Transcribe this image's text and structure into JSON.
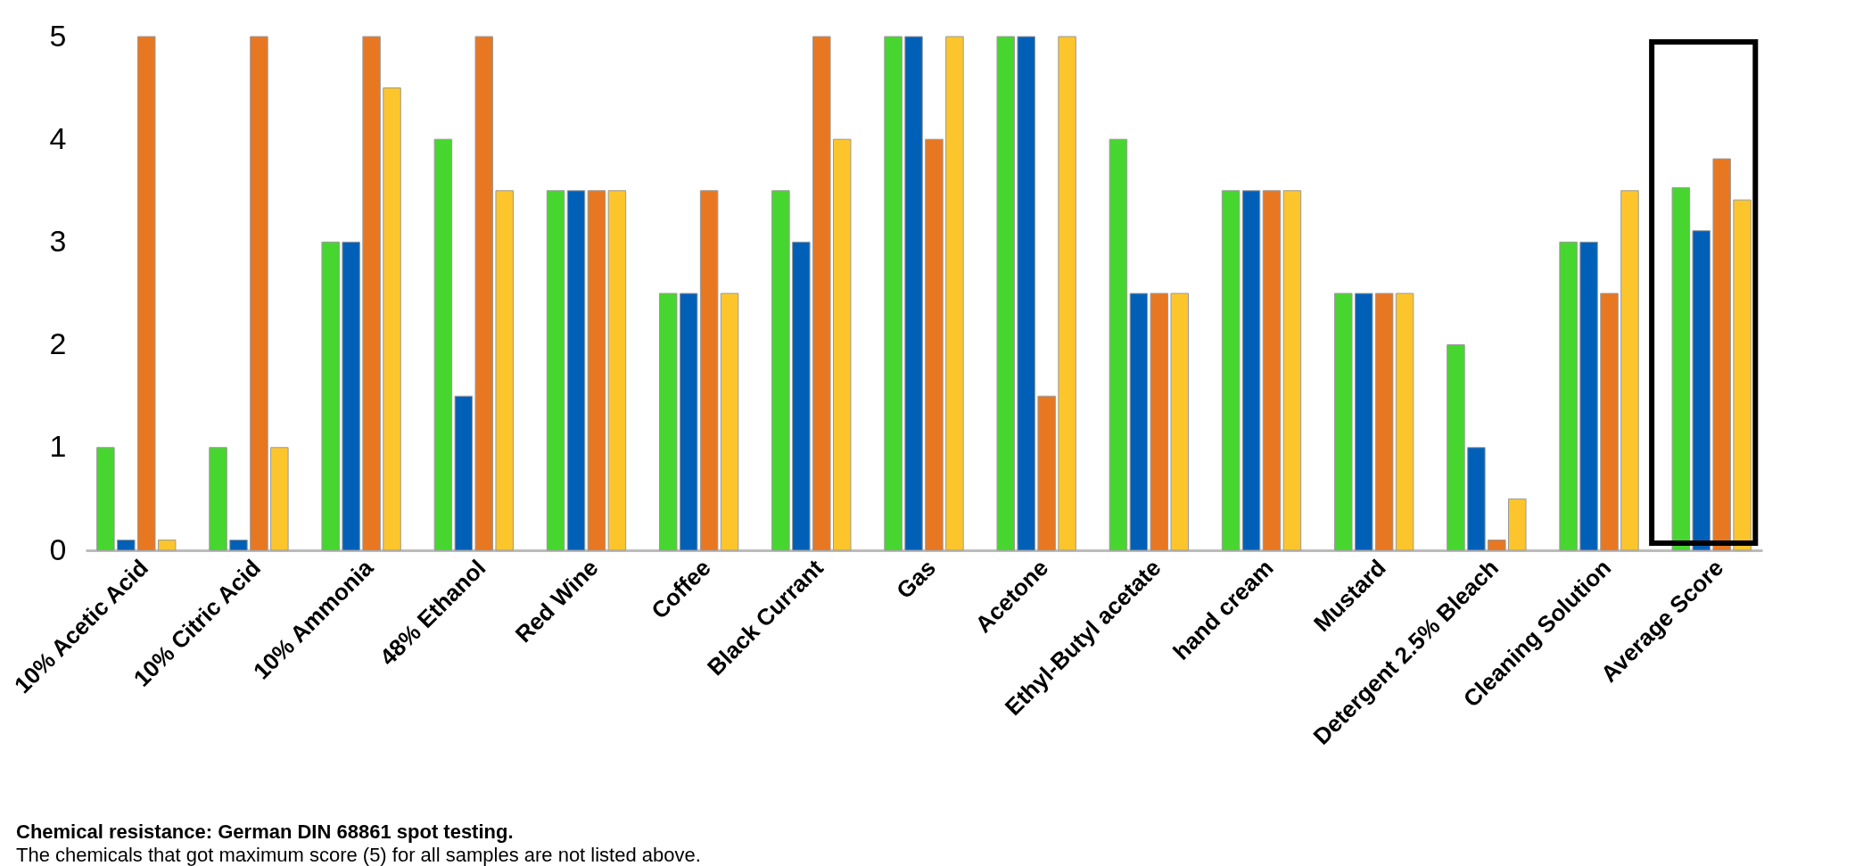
{
  "chart_data": {
    "type": "bar",
    "categories": [
      "10% Acetic Acid",
      "10% Citric Acid",
      "10% Ammonia",
      "48% Ethanol",
      "Red Wine",
      "Coffee",
      "Black Currant",
      "Gas",
      "Acetone",
      "Ethyl-Butyl acetate",
      "hand cream",
      "Mustard",
      "Detergent 2.5% Bleach",
      "Cleaning Solution",
      "Average Score"
    ],
    "series": [
      {
        "color": "#47d62f",
        "values": [
          1,
          1,
          3,
          4,
          3.5,
          2.5,
          3.5,
          5,
          5,
          4,
          3.5,
          2.5,
          2,
          3,
          3.53
        ]
      },
      {
        "color": "#0060b8",
        "values": [
          0.1,
          0.1,
          3,
          1.5,
          3.5,
          2.5,
          3,
          5,
          5,
          2.5,
          3.5,
          2.5,
          1,
          3,
          3.11
        ]
      },
      {
        "color": "#e87722",
        "values": [
          5,
          5,
          5,
          5,
          3.5,
          3.5,
          5,
          4,
          1.5,
          2.5,
          3.5,
          2.5,
          0.1,
          2.5,
          3.81
        ]
      },
      {
        "color": "#fdc52c",
        "values": [
          0.1,
          1,
          4.5,
          3.5,
          3.5,
          2.5,
          4,
          5,
          5,
          2.5,
          3.5,
          2.5,
          0.5,
          3.5,
          3.41
        ]
      }
    ],
    "ylim": [
      0,
      5
    ],
    "yticks": [
      0,
      1,
      2,
      3,
      4,
      5
    ],
    "grid": false,
    "legend": false,
    "annotations": [
      "Chemical resistance: German DIN 68861 spot testing.",
      "The chemicals that got maximum score (5) for all samples are not listed above."
    ]
  }
}
